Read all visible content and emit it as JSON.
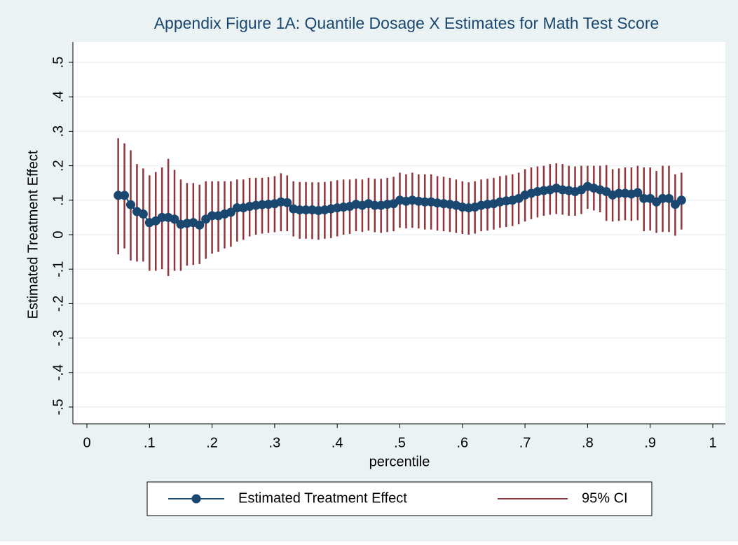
{
  "chart_data": {
    "type": "rcap-line",
    "title": "Appendix Figure 1A: Quantile Dosage X Estimates for Math Test Score",
    "x_label": "percentile",
    "y_label": "Estimated Treatment Effect",
    "x": [
      0.05,
      0.06,
      0.07,
      0.08,
      0.09,
      0.1,
      0.11,
      0.12,
      0.13,
      0.14,
      0.15,
      0.16,
      0.17,
      0.18,
      0.19,
      0.2,
      0.21,
      0.22,
      0.23,
      0.24,
      0.25,
      0.26,
      0.27,
      0.28,
      0.29,
      0.3,
      0.31,
      0.32,
      0.33,
      0.34,
      0.35,
      0.36,
      0.37,
      0.38,
      0.39,
      0.4,
      0.41,
      0.42,
      0.43,
      0.44,
      0.45,
      0.46,
      0.47,
      0.48,
      0.49,
      0.5,
      0.51,
      0.52,
      0.53,
      0.54,
      0.55,
      0.56,
      0.57,
      0.58,
      0.59,
      0.6,
      0.61,
      0.62,
      0.63,
      0.64,
      0.65,
      0.66,
      0.67,
      0.68,
      0.69,
      0.7,
      0.71,
      0.72,
      0.73,
      0.74,
      0.75,
      0.76,
      0.77,
      0.78,
      0.79,
      0.8,
      0.81,
      0.82,
      0.83,
      0.84,
      0.85,
      0.86,
      0.87,
      0.88,
      0.89,
      0.9,
      0.91,
      0.92,
      0.93,
      0.94,
      0.95
    ],
    "series": [
      {
        "name": "Estimated Treatment Effect",
        "color": "#1a476f",
        "values": [
          0.114,
          0.114,
          0.087,
          0.067,
          0.06,
          0.035,
          0.04,
          0.05,
          0.05,
          0.045,
          0.03,
          0.033,
          0.035,
          0.028,
          0.045,
          0.055,
          0.055,
          0.06,
          0.065,
          0.078,
          0.078,
          0.082,
          0.085,
          0.087,
          0.088,
          0.09,
          0.095,
          0.093,
          0.075,
          0.072,
          0.072,
          0.072,
          0.07,
          0.072,
          0.075,
          0.078,
          0.08,
          0.082,
          0.088,
          0.085,
          0.09,
          0.085,
          0.085,
          0.088,
          0.09,
          0.1,
          0.097,
          0.1,
          0.097,
          0.095,
          0.095,
          0.092,
          0.09,
          0.088,
          0.085,
          0.08,
          0.078,
          0.08,
          0.085,
          0.088,
          0.09,
          0.095,
          0.098,
          0.1,
          0.105,
          0.115,
          0.12,
          0.125,
          0.128,
          0.13,
          0.135,
          0.13,
          0.128,
          0.125,
          0.13,
          0.14,
          0.135,
          0.13,
          0.125,
          0.115,
          0.12,
          0.12,
          0.118,
          0.122,
          0.105,
          0.105,
          0.095,
          0.105,
          0.105,
          0.088,
          0.1
        ]
      },
      {
        "name": "95% CI",
        "color": "#90353b",
        "low": [
          -0.057,
          -0.04,
          -0.075,
          -0.078,
          -0.078,
          -0.105,
          -0.105,
          -0.1,
          -0.12,
          -0.105,
          -0.105,
          -0.09,
          -0.088,
          -0.085,
          -0.07,
          -0.055,
          -0.05,
          -0.04,
          -0.035,
          -0.02,
          -0.015,
          -0.005,
          0,
          0.003,
          0.005,
          0.007,
          0.01,
          0.01,
          -0.005,
          -0.012,
          -0.012,
          -0.013,
          -0.015,
          -0.012,
          -0.01,
          -0.005,
          0,
          0.002,
          0.01,
          0.008,
          0.012,
          0.007,
          0.005,
          0.008,
          0.01,
          0.02,
          0.018,
          0.02,
          0.018,
          0.015,
          0.015,
          0.012,
          0.01,
          0.008,
          0.005,
          0.002,
          0,
          0.003,
          0.01,
          0.012,
          0.015,
          0.02,
          0.022,
          0.025,
          0.03,
          0.038,
          0.045,
          0.05,
          0.055,
          0.058,
          0.06,
          0.058,
          0.055,
          0.055,
          0.06,
          0.075,
          0.07,
          0.065,
          0.04,
          0.038,
          0.04,
          0.042,
          0.04,
          0.042,
          0.01,
          0.012,
          0.005,
          0.008,
          0.008,
          -0.003,
          0.015
        ],
        "high": [
          0.28,
          0.265,
          0.245,
          0.205,
          0.192,
          0.172,
          0.182,
          0.195,
          0.22,
          0.188,
          0.16,
          0.15,
          0.15,
          0.145,
          0.155,
          0.155,
          0.155,
          0.155,
          0.155,
          0.16,
          0.16,
          0.165,
          0.165,
          0.165,
          0.167,
          0.17,
          0.178,
          0.172,
          0.155,
          0.153,
          0.153,
          0.152,
          0.152,
          0.153,
          0.155,
          0.158,
          0.16,
          0.16,
          0.162,
          0.16,
          0.165,
          0.162,
          0.162,
          0.165,
          0.168,
          0.18,
          0.175,
          0.18,
          0.175,
          0.175,
          0.175,
          0.17,
          0.168,
          0.165,
          0.16,
          0.155,
          0.152,
          0.155,
          0.16,
          0.162,
          0.165,
          0.17,
          0.172,
          0.175,
          0.18,
          0.19,
          0.195,
          0.198,
          0.2,
          0.205,
          0.207,
          0.205,
          0.2,
          0.198,
          0.2,
          0.2,
          0.2,
          0.2,
          0.202,
          0.19,
          0.192,
          0.195,
          0.195,
          0.2,
          0.195,
          0.195,
          0.185,
          0.2,
          0.2,
          0.175,
          0.18
        ]
      }
    ],
    "xlim": [
      0,
      1
    ],
    "ylim": [
      -0.5,
      0.5
    ],
    "xticks": [
      0,
      {
        "value": 0.1,
        "label": ".1"
      },
      {
        "value": 0.2,
        "label": ".2"
      },
      {
        "value": 0.3,
        "label": ".3"
      },
      {
        "value": 0.4,
        "label": ".4"
      },
      {
        "value": 0.5,
        "label": ".5"
      },
      {
        "value": 0.6,
        "label": ".6"
      },
      {
        "value": 0.7,
        "label": ".7"
      },
      {
        "value": 0.8,
        "label": ".8"
      },
      {
        "value": 0.9,
        "label": ".9"
      },
      1
    ],
    "yticks": [
      {
        "value": -0.5,
        "label": "-.5"
      },
      {
        "value": -0.4,
        "label": "-.4"
      },
      {
        "value": -0.3,
        "label": "-.3"
      },
      {
        "value": -0.2,
        "label": "-.2"
      },
      {
        "value": -0.1,
        "label": "-.1"
      },
      0,
      {
        "value": 0.1,
        "label": ".1"
      },
      {
        "value": 0.2,
        "label": ".2"
      },
      {
        "value": 0.3,
        "label": ".3"
      },
      {
        "value": 0.4,
        "label": ".4"
      },
      {
        "value": 0.5,
        "label": ".5"
      }
    ],
    "grid": true
  }
}
